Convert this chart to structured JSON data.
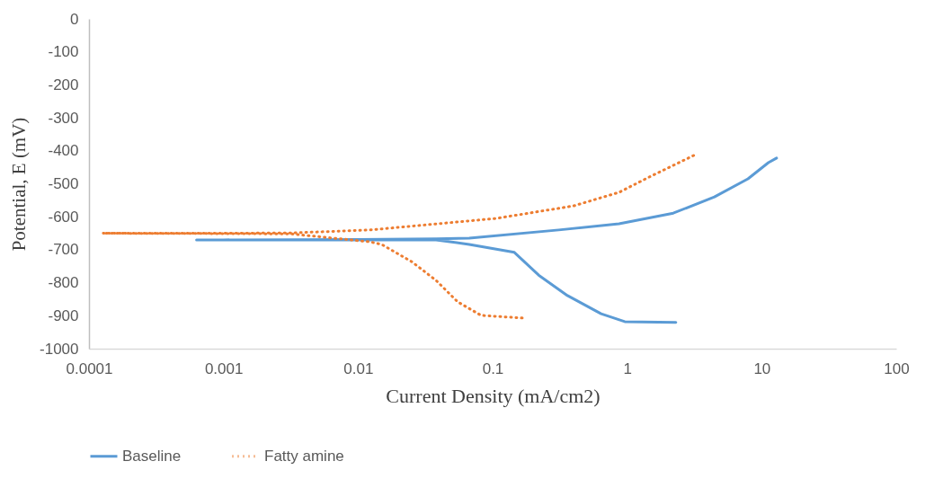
{
  "chart_data": {
    "type": "line",
    "xlabel": "Current Density  (mA/cm2)",
    "ylabel": "Potential, E (mV)",
    "log": "x",
    "grid": false,
    "legend": "bottom",
    "xlim": [
      0.0001,
      100
    ],
    "xticks": [
      0.0001,
      0.001,
      0.01,
      0.1,
      1,
      10,
      100
    ],
    "ylim": [
      -1000,
      0
    ],
    "yticks": [
      0,
      -100,
      -200,
      -300,
      -400,
      -500,
      -600,
      -700,
      -800,
      -900,
      -1000
    ],
    "series": [
      {
        "name": "Baseline",
        "color": "#5b9bd5",
        "line_style": "solid",
        "x": [
          2.3,
          0.96,
          0.64,
          0.36,
          0.22,
          0.145,
          0.067,
          0.038,
          0.01,
          0.001,
          0.00063,
          0.001,
          0.01,
          0.038,
          0.067,
          0.31,
          0.87,
          2.2,
          4.45,
          7.9,
          11.2,
          12.9
        ],
        "values": [
          -920,
          -918,
          -894,
          -839,
          -777,
          -708,
          -684,
          -670,
          -670,
          -670,
          -670,
          -670,
          -669,
          -667,
          -665,
          -640,
          -621,
          -589,
          -540,
          -485,
          -436,
          -422
        ]
      },
      {
        "name": "Fatty amine",
        "color": "#ed7d31",
        "line_style": "dotted",
        "x": [
          0.166,
          0.082,
          0.055,
          0.038,
          0.025,
          0.015,
          0.0123,
          0.0032,
          0.001,
          0.000126,
          0.001,
          0.0032,
          0.0123,
          0.106,
          0.4,
          0.87,
          1.45,
          3.2
        ],
        "values": [
          -907,
          -899,
          -858,
          -793,
          -736,
          -684,
          -676,
          -652,
          -651,
          -650,
          -650,
          -649,
          -640,
          -605,
          -567,
          -526,
          -480,
          -412
        ]
      }
    ]
  }
}
